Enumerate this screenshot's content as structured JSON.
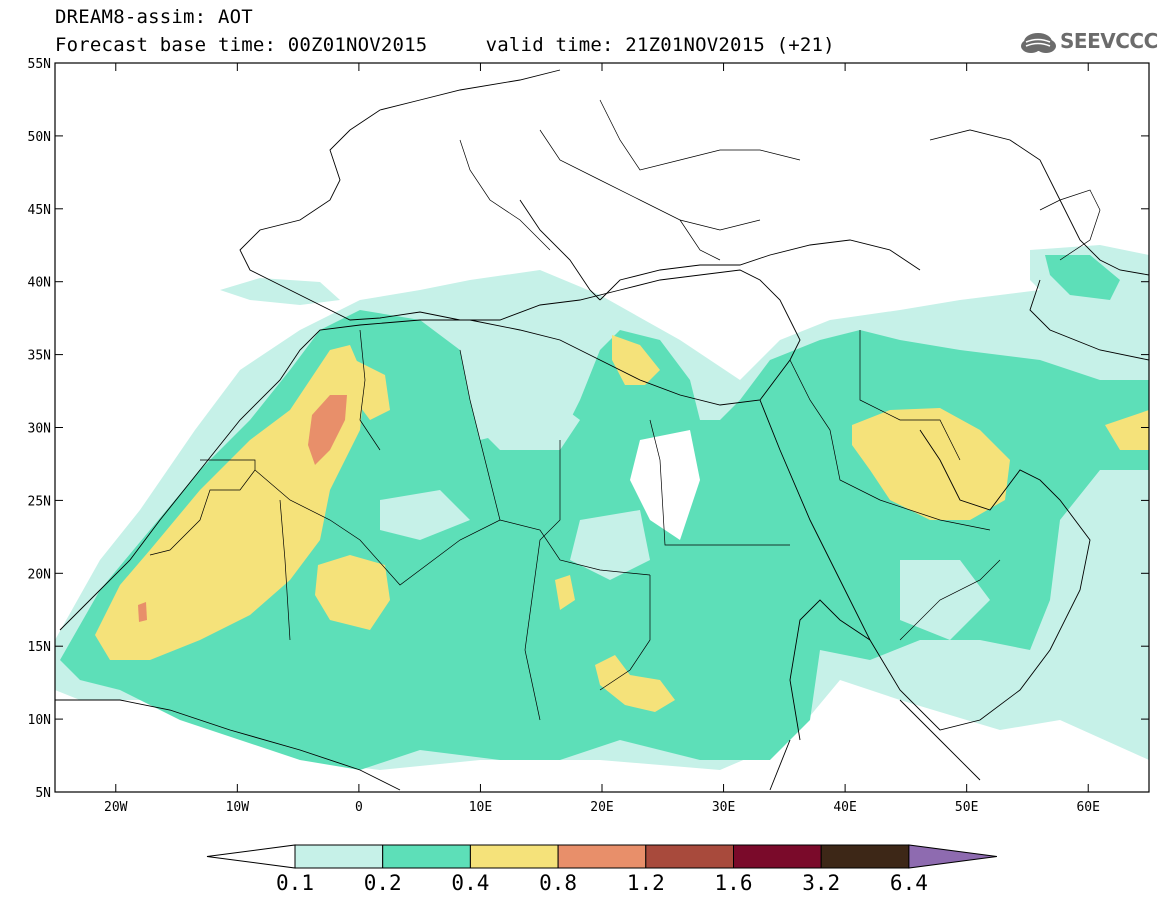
{
  "header": {
    "line1": "DREAM8-assim: AOT",
    "line2": "Forecast base time: 00Z01NOV2015     valid time: 21Z01NOV2015 (+21)",
    "logo_text": "SEEVCCC"
  },
  "map": {
    "region": {
      "lon_range": [
        -25,
        65
      ],
      "lat_range": [
        5,
        55
      ]
    },
    "lat_labels": [
      "55N",
      "50N",
      "45N",
      "40N",
      "35N",
      "30N",
      "25N",
      "20N",
      "15N",
      "10N",
      "5N"
    ],
    "lat_values": [
      55,
      50,
      45,
      40,
      35,
      30,
      25,
      20,
      15,
      10,
      5
    ],
    "lon_labels": [
      "20W",
      "10W",
      "0",
      "10E",
      "20E",
      "30E",
      "40E",
      "50E",
      "60E"
    ],
    "lon_values": [
      -20,
      -10,
      0,
      10,
      20,
      30,
      40,
      50,
      60
    ]
  },
  "colorbar": {
    "labels": [
      "0.1",
      "0.2",
      "0.4",
      "0.8",
      "1.2",
      "1.6",
      "3.2",
      "6.4"
    ],
    "colors": [
      "#ffffff",
      "#c6f1e8",
      "#5ddfb8",
      "#f5e27a",
      "#e88f6a",
      "#a84a3c",
      "#7a0a2a",
      "#3d2717",
      "#8e6bb0"
    ]
  }
}
